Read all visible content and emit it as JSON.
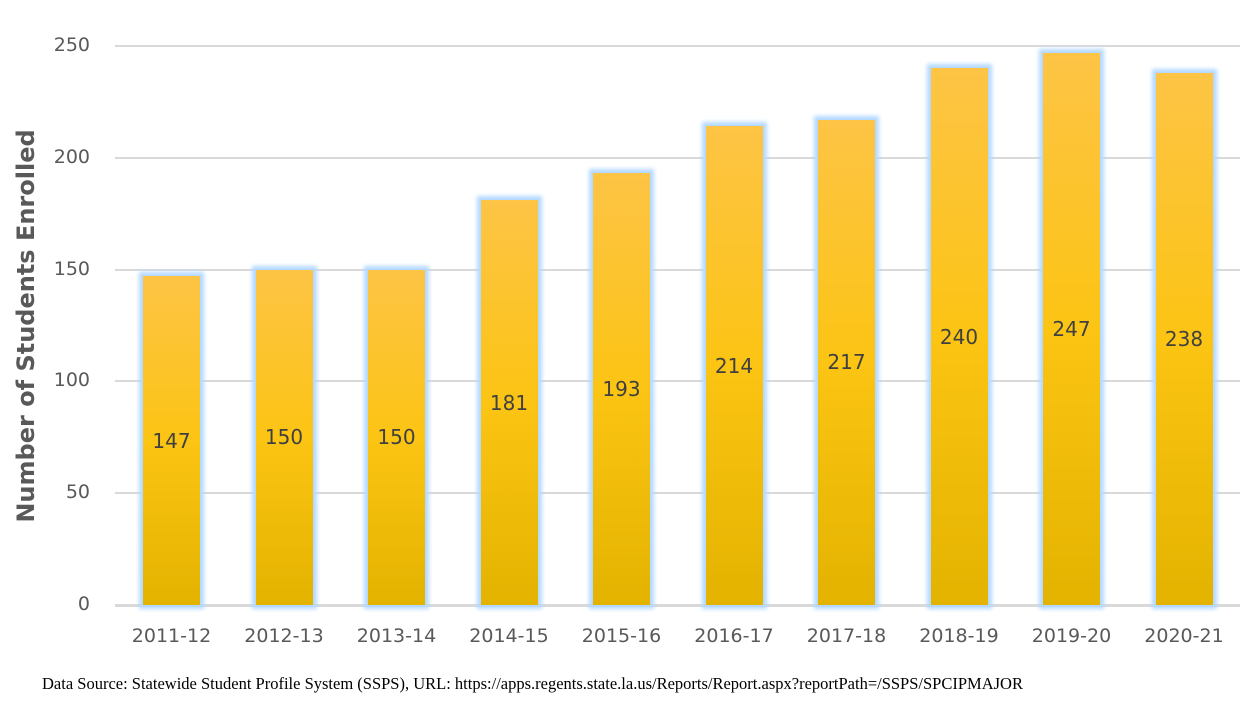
{
  "chart_data": {
    "type": "bar",
    "title": "",
    "xlabel": "",
    "ylabel": "Number of Students Enrolled",
    "ylim": [
      0,
      250
    ],
    "yticks": [
      0,
      50,
      100,
      150,
      200,
      250
    ],
    "grid": true,
    "legend": null,
    "categories": [
      "2011-12",
      "2012-13",
      "2013-14",
      "2014-15",
      "2015-16",
      "2016-17",
      "2017-18",
      "2018-19",
      "2019-20",
      "2020-21"
    ],
    "values": [
      147,
      150,
      150,
      181,
      193,
      214,
      217,
      240,
      247,
      238
    ],
    "data_labels": [
      "147",
      "150",
      "150",
      "181",
      "193",
      "214",
      "217",
      "240",
      "247",
      "238"
    ],
    "colors": {
      "bar_top": "#fdc446",
      "bar_bottom": "#e3b300",
      "glow": "#b3d9ff",
      "grid": "#d9d9d9",
      "text": "#595959"
    }
  },
  "footer": {
    "source": "Data Source:  Statewide Student Profile System (SSPS), URL: https://apps.regents.state.la.us/Reports/Report.aspx?reportPath=/SSPS/SPCIPMAJOR"
  }
}
